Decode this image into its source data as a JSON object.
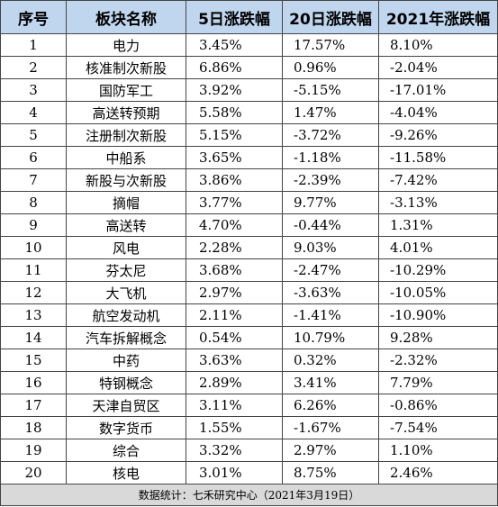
{
  "headers": [
    "序号",
    "板块名称",
    "5日涨跌幅",
    "20日涨跌幅",
    "2021年涨跌幅"
  ],
  "rows": [
    {
      "idx": "1",
      "name": "电力",
      "d5": "3.45%",
      "d20": "17.57%",
      "y2021": "8.10%"
    },
    {
      "idx": "2",
      "name": "核准制次新股",
      "d5": "6.86%",
      "d20": "0.96%",
      "y2021": "-2.04%"
    },
    {
      "idx": "3",
      "name": "国防军工",
      "d5": "3.92%",
      "d20": "-5.15%",
      "y2021": "-17.01%"
    },
    {
      "idx": "4",
      "name": "高送转预期",
      "d5": "5.58%",
      "d20": "1.47%",
      "y2021": "-4.04%"
    },
    {
      "idx": "5",
      "name": "注册制次新股",
      "d5": "5.15%",
      "d20": "-3.72%",
      "y2021": "-9.26%"
    },
    {
      "idx": "6",
      "name": "中船系",
      "d5": "3.65%",
      "d20": "-1.18%",
      "y2021": "-11.58%"
    },
    {
      "idx": "7",
      "name": "新股与次新股",
      "d5": "3.86%",
      "d20": "-2.39%",
      "y2021": "-7.42%"
    },
    {
      "idx": "8",
      "name": "摘帽",
      "d5": "3.77%",
      "d20": "9.77%",
      "y2021": "-3.13%"
    },
    {
      "idx": "9",
      "name": "高送转",
      "d5": "4.70%",
      "d20": "-0.44%",
      "y2021": "1.31%"
    },
    {
      "idx": "10",
      "name": "风电",
      "d5": "2.28%",
      "d20": "9.03%",
      "y2021": "4.01%"
    },
    {
      "idx": "11",
      "name": "芬太尼",
      "d5": "3.68%",
      "d20": "-2.47%",
      "y2021": "-10.29%"
    },
    {
      "idx": "12",
      "name": "大飞机",
      "d5": "2.97%",
      "d20": "-3.63%",
      "y2021": "-10.05%"
    },
    {
      "idx": "13",
      "name": "航空发动机",
      "d5": "2.11%",
      "d20": "-1.41%",
      "y2021": "-10.90%"
    },
    {
      "idx": "14",
      "name": "汽车拆解概念",
      "d5": "0.54%",
      "d20": "10.79%",
      "y2021": "9.28%"
    },
    {
      "idx": "15",
      "name": "中药",
      "d5": "3.63%",
      "d20": "0.32%",
      "y2021": "-2.32%"
    },
    {
      "idx": "16",
      "name": "特钢概念",
      "d5": "2.89%",
      "d20": "3.41%",
      "y2021": "7.79%"
    },
    {
      "idx": "17",
      "name": "天津自贸区",
      "d5": "3.11%",
      "d20": "6.26%",
      "y2021": "-0.86%"
    },
    {
      "idx": "18",
      "name": "数字货币",
      "d5": "1.55%",
      "d20": "-1.67%",
      "y2021": "-7.54%"
    },
    {
      "idx": "19",
      "name": "综合",
      "d5": "3.32%",
      "d20": "2.97%",
      "y2021": "1.10%"
    },
    {
      "idx": "20",
      "name": "核电",
      "d5": "3.01%",
      "d20": "8.75%",
      "y2021": "2.46%"
    }
  ],
  "footer": "数据统计：七禾研究中心（2021年3月19日）",
  "colors": {
    "header_bg": "#bfd6ee",
    "footer_bg": "#d9d9d9",
    "border": "#444444"
  }
}
